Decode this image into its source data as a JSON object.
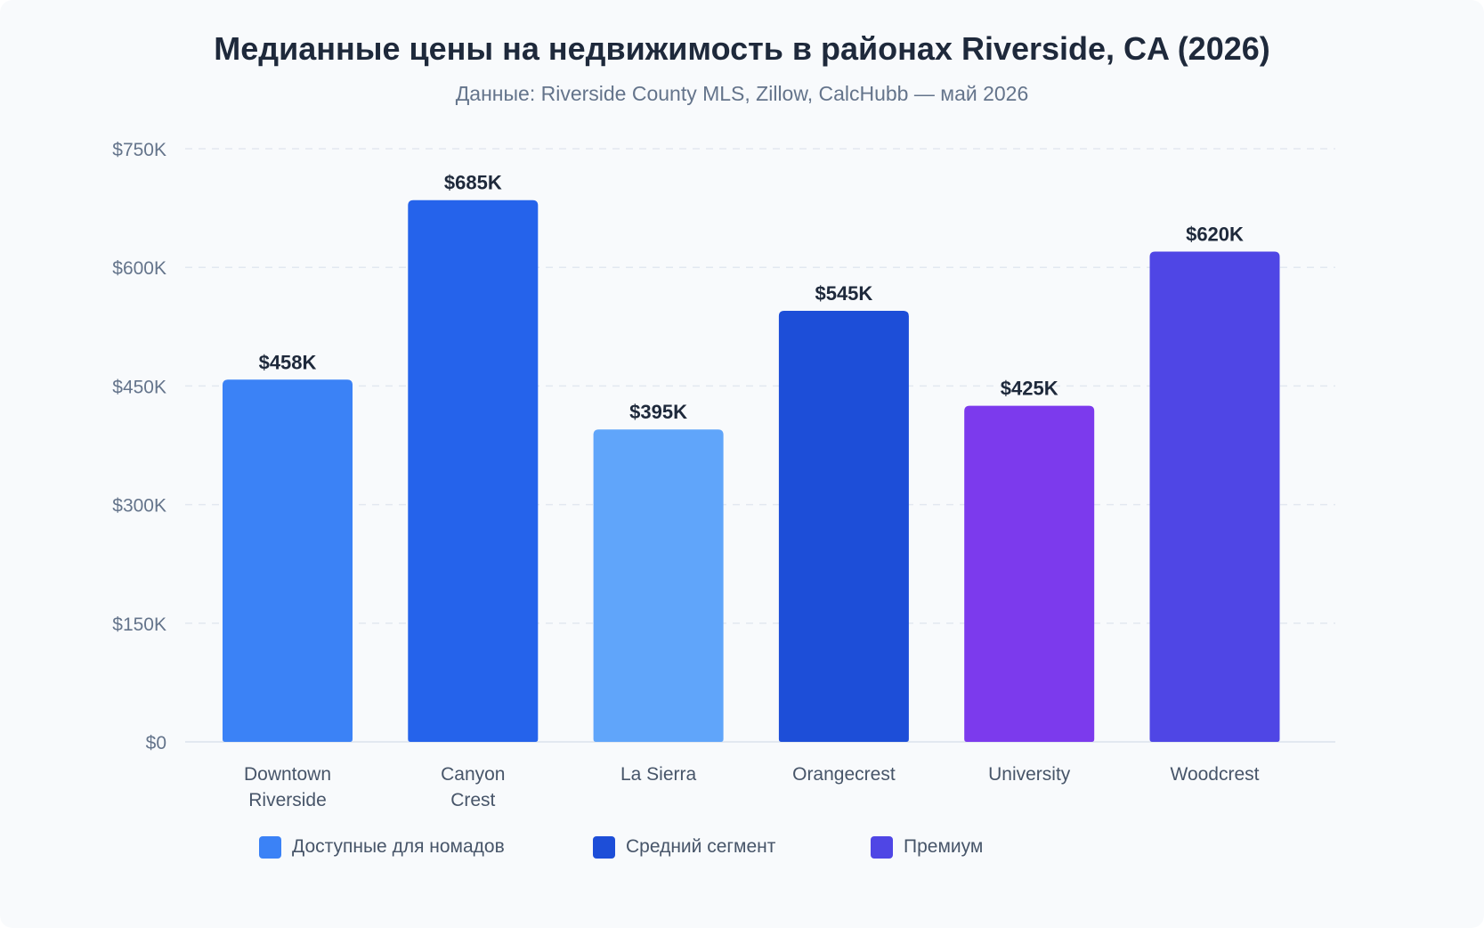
{
  "chart_data": {
    "type": "bar",
    "title": "Медианные цены на недвижимость в районах Riverside, CA (2026)",
    "subtitle": "Данные: Riverside County MLS, Zillow, CalcHubb — май 2026",
    "xlabel": "",
    "ylabel": "",
    "categories": [
      [
        "Downtown",
        "Riverside"
      ],
      [
        "Canyon",
        "Crest"
      ],
      [
        "La Sierra"
      ],
      [
        "Orangecrest"
      ],
      [
        "University"
      ],
      [
        "Woodcrest"
      ]
    ],
    "values": [
      458,
      685,
      395,
      545,
      425,
      620
    ],
    "value_labels": [
      "$458K",
      "$685K",
      "$395K",
      "$545K",
      "$425K",
      "$620K"
    ],
    "bar_colors": [
      "#3b82f6",
      "#2563eb",
      "#60a5fa",
      "#1d4ed8",
      "#7c3aed",
      "#4f46e5"
    ],
    "ylim": [
      0,
      750
    ],
    "yticks": [
      0,
      150,
      300,
      450,
      600,
      750
    ],
    "ytick_labels": [
      "$0",
      "$150K",
      "$300K",
      "$450K",
      "$600K",
      "$750K"
    ],
    "grid": true,
    "legend_position": "bottom",
    "legend": [
      {
        "label": "Доступные для номадов",
        "color": "#3b82f6"
      },
      {
        "label": "Средний сегмент",
        "color": "#1d4ed8"
      },
      {
        "label": "Премиум",
        "color": "#4f46e5"
      }
    ]
  }
}
